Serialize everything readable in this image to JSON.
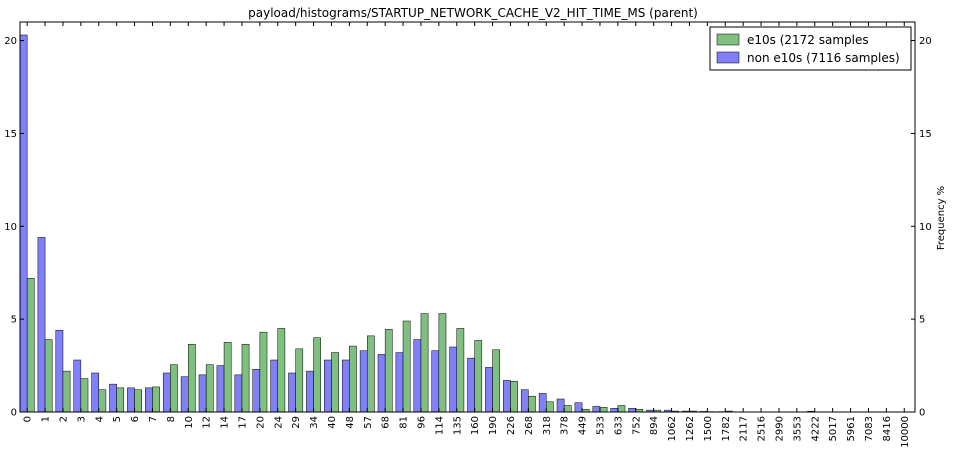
{
  "chart_data": {
    "type": "bar",
    "title": "payload/histograms/STARTUP_NETWORK_CACHE_V2_HIT_TIME_MS (parent)",
    "xlabel": "",
    "ylabel": "",
    "ylabel_right": "Frequency %",
    "ylim": [
      0,
      21
    ],
    "yticks": [
      0,
      5,
      10,
      15,
      20
    ],
    "legend_position": "top-right",
    "grid": false,
    "categories": [
      "0",
      "1",
      "2",
      "3",
      "4",
      "5",
      "6",
      "7",
      "8",
      "10",
      "12",
      "14",
      "17",
      "20",
      "24",
      "29",
      "34",
      "40",
      "48",
      "57",
      "68",
      "81",
      "96",
      "114",
      "135",
      "160",
      "190",
      "226",
      "268",
      "318",
      "378",
      "449",
      "533",
      "633",
      "752",
      "894",
      "1062",
      "1262",
      "1500",
      "1782",
      "2117",
      "2516",
      "2990",
      "3553",
      "4222",
      "5017",
      "5961",
      "7083",
      "8416",
      "10000"
    ],
    "series": [
      {
        "name": "non e10s (7116 samples)",
        "color": "#8080f8",
        "values": [
          20.3,
          9.4,
          4.4,
          2.8,
          2.1,
          1.5,
          1.3,
          1.3,
          2.1,
          1.9,
          2.0,
          2.5,
          2.0,
          2.3,
          2.8,
          2.1,
          2.2,
          2.8,
          2.8,
          3.3,
          3.1,
          3.2,
          3.9,
          3.3,
          3.5,
          2.9,
          2.4,
          1.7,
          1.2,
          1.0,
          0.7,
          0.5,
          0.3,
          0.2,
          0.2,
          0.1,
          0.1,
          0.05,
          0.03,
          0.02,
          0.0,
          0.0,
          0.0,
          0.0,
          0.04,
          0.0,
          0.0,
          0.0,
          0.0,
          0.0
        ]
      },
      {
        "name": "e10s (2172 samples",
        "color": "#7fbf7f",
        "values": [
          7.2,
          3.9,
          2.2,
          1.8,
          1.2,
          1.3,
          1.2,
          1.35,
          2.55,
          3.65,
          2.55,
          3.75,
          3.65,
          4.3,
          4.5,
          3.4,
          4.0,
          3.2,
          3.55,
          4.1,
          4.45,
          4.9,
          5.3,
          5.3,
          4.5,
          3.85,
          3.35,
          1.65,
          0.85,
          0.55,
          0.35,
          0.15,
          0.25,
          0.35,
          0.15,
          0.1,
          0.05,
          0.05,
          0.02,
          0.05,
          0.0,
          0.0,
          0.0,
          0.0,
          0.0,
          0.0,
          0.0,
          0.0,
          0.0,
          0.0
        ]
      }
    ]
  }
}
